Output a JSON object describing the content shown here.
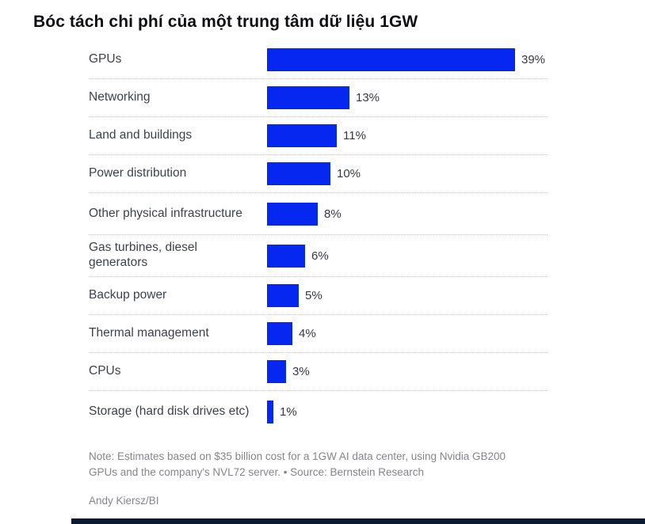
{
  "title": "Bóc tách chi phí của một trung tâm dữ liệu 1GW",
  "chart_data": {
    "type": "bar",
    "orientation": "horizontal",
    "title": "Bóc tách chi phí của một trung tâm dữ liệu 1GW",
    "categories": [
      "GPUs",
      "Networking",
      "Land and buildings",
      "Power distribution",
      "Other physical infrastructure",
      "Gas turbines, diesel generators",
      "Backup power",
      "Thermal management",
      "CPUs",
      "Storage (hard disk drives etc)"
    ],
    "values": [
      39,
      13,
      11,
      10,
      8,
      6,
      5,
      4,
      3,
      1
    ],
    "value_labels": [
      "39%",
      "13%",
      "11%",
      "10%",
      "8%",
      "6%",
      "5%",
      "4%",
      "3%",
      "1%"
    ],
    "unit": "%",
    "xlim": [
      0,
      40
    ],
    "grid": false,
    "legend": false,
    "bar_color": "#0527f0",
    "row_separator_style": "dotted"
  },
  "note": "Note: Estimates based on $35 billion cost for a 1GW AI data center, using Nvidia GB200 GPUs and the company's NVL72 server. • Source: Bernstein Research",
  "credit": "Andy Kiersz/BI",
  "colors": {
    "bar": "#0527f0",
    "title_text": "#0e0f12",
    "label_text": "#3d424a",
    "note_text": "#85848a",
    "separator": "#c4c4c4",
    "footer_bar": "#0c1a31"
  }
}
